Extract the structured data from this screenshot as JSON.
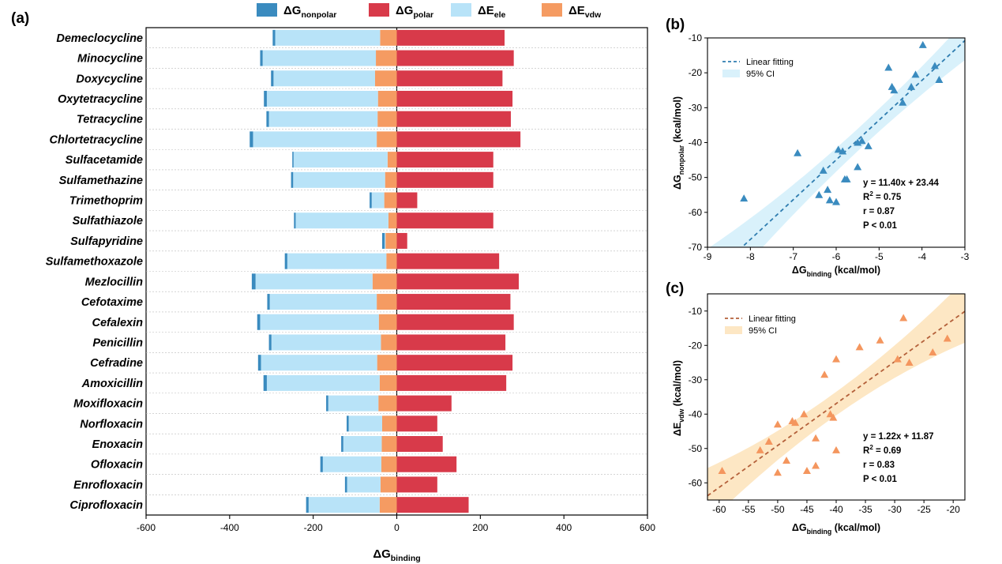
{
  "colors": {
    "nonpolar": "#3a8bbf",
    "polar": "#d83a4a",
    "ele": "#b8e3f8",
    "vdw": "#f59b62",
    "fit_b": "#2f7db0",
    "ci_b": "#d9f1fb",
    "fit_c": "#b4603a",
    "ci_c": "#fde7c4",
    "tri_b": "#3a8bbf",
    "tri_c": "#f4965e"
  },
  "chart_data": [
    {
      "panel": "(a)",
      "type": "bar",
      "orientation": "horizontal",
      "stacked": true,
      "xlabel_main": "ΔG",
      "xlabel_sub": "binding",
      "xlim": [
        -600,
        600
      ],
      "xticks": [
        "-600",
        "-400",
        "-200",
        "0",
        "200",
        "400",
        "600"
      ],
      "legend": [
        {
          "main": "ΔG",
          "sub": "nonpolar",
          "color_key": "nonpolar"
        },
        {
          "main": "ΔG",
          "sub": "polar",
          "color_key": "polar"
        },
        {
          "main": "ΔE",
          "sub": "ele",
          "color_key": "ele"
        },
        {
          "main": "ΔE",
          "sub": "vdw",
          "color_key": "vdw"
        }
      ],
      "categories": [
        "Demeclocycline",
        "Minocycline",
        "Doxycycline",
        "Oxytetracycline",
        "Tetracycline",
        "Chlortetracycline",
        "Sulfacetamide",
        "Sulfamethazine",
        "Trimethoprim",
        "Sulfathiazole",
        "Sulfapyridine",
        "Sulfamethoxazole",
        "Mezlocillin",
        "Cefotaxime",
        "Cefalexin",
        "Penicillin",
        "Cefradine",
        "Amoxicillin",
        "Moxifloxacin",
        "Norfloxacin",
        "Enoxacin",
        "Ofloxacin",
        "Enrofloxacin",
        "Ciprofloxacin"
      ],
      "series": [
        {
          "name_main": "ΔE",
          "name_sub": "vdw",
          "key": "vdw",
          "values": [
            -40,
            -50,
            -52,
            -45,
            -46,
            -48,
            -22,
            -28,
            -30,
            -20,
            -27,
            -25,
            -58,
            -48,
            -43,
            -38,
            -47,
            -41,
            -44,
            -35,
            -36,
            -37,
            -39,
            -41
          ]
        },
        {
          "name_main": "ΔE",
          "name_sub": "ele",
          "key": "ele",
          "values": [
            -251,
            -271,
            -243,
            -266,
            -260,
            -296,
            -225,
            -220,
            -30,
            -222,
            -2,
            -237,
            -280,
            -256,
            -284,
            -262,
            -278,
            -270,
            -120,
            -80,
            -92,
            -140,
            -80,
            -170
          ]
        },
        {
          "name_main": "ΔG",
          "name_sub": "nonpolar",
          "key": "nonpolar",
          "values": [
            -6,
            -6,
            -6,
            -7,
            -6,
            -8,
            -3,
            -5,
            -5,
            -4,
            -6,
            -6,
            -9,
            -6,
            -7,
            -6,
            -7,
            -8,
            -5,
            -5,
            -5,
            -6,
            -5,
            -6
          ]
        },
        {
          "name_main": "ΔG",
          "name_sub": "polar",
          "key": "polar",
          "values": [
            258,
            280,
            253,
            277,
            273,
            296,
            231,
            231,
            49,
            231,
            25,
            245,
            292,
            272,
            280,
            260,
            277,
            262,
            131,
            97,
            110,
            143,
            97,
            172
          ]
        }
      ]
    },
    {
      "panel": "(b)",
      "type": "scatter",
      "xlabel_main": "ΔG",
      "xlabel_sub": "binding",
      "xlabel_unit": "(kcal/mol)",
      "ylabel_main": "ΔG",
      "ylabel_sub": "nonpolar",
      "ylabel_unit": "(kcal/mol)",
      "xlim": [
        -9,
        -3
      ],
      "ylim": [
        -70,
        -10
      ],
      "xticks": [
        -9,
        -8,
        -7,
        -6,
        -5,
        -4,
        -3
      ],
      "yticks": [
        -10,
        -20,
        -30,
        -40,
        -50,
        -60,
        -70
      ],
      "legend": [
        "Linear fitting",
        "95% CI"
      ],
      "equation": "y = 11.40x + 23.44",
      "r2_prefix": "R",
      "r2_sup": "2",
      "r2_value": " = 0.75",
      "r": "r = 0.87",
      "p": "P < 0.01",
      "fit": {
        "slope": 11.4,
        "intercept": 23.44
      },
      "points": [
        {
          "x": -8.15,
          "y": -56
        },
        {
          "x": -6.9,
          "y": -43
        },
        {
          "x": -6.4,
          "y": -55
        },
        {
          "x": -6.3,
          "y": -48
        },
        {
          "x": -6.2,
          "y": -53.5
        },
        {
          "x": -6.15,
          "y": -56.5
        },
        {
          "x": -6.0,
          "y": -57
        },
        {
          "x": -5.95,
          "y": -42
        },
        {
          "x": -5.85,
          "y": -42.5
        },
        {
          "x": -5.8,
          "y": -50.5
        },
        {
          "x": -5.75,
          "y": -50.5
        },
        {
          "x": -5.5,
          "y": -47
        },
        {
          "x": -5.5,
          "y": -40
        },
        {
          "x": -5.4,
          "y": -39.5
        },
        {
          "x": -5.25,
          "y": -41
        },
        {
          "x": -4.78,
          "y": -18.5
        },
        {
          "x": -4.7,
          "y": -24
        },
        {
          "x": -4.65,
          "y": -25
        },
        {
          "x": -4.45,
          "y": -28.5
        },
        {
          "x": -4.25,
          "y": -24
        },
        {
          "x": -4.15,
          "y": -20.5
        },
        {
          "x": -3.98,
          "y": -12
        },
        {
          "x": -3.7,
          "y": -18
        },
        {
          "x": -3.6,
          "y": -22
        }
      ]
    },
    {
      "panel": "(c)",
      "type": "scatter",
      "xlabel_main": "ΔG",
      "xlabel_sub": "binding",
      "xlabel_unit": "(kcal/mol)",
      "ylabel_main": "ΔE",
      "ylabel_sub": "vdw",
      "ylabel_unit": "(kcal/mol)",
      "xlim": [
        -62,
        -18
      ],
      "ylim": [
        -65,
        -5
      ],
      "xticks": [
        -60,
        -55,
        -50,
        -45,
        -40,
        -35,
        -30,
        -25,
        -20
      ],
      "yticks": [
        -10,
        -20,
        -30,
        -40,
        -50,
        -60
      ],
      "legend": [
        "Linear fitting",
        "95% CI"
      ],
      "equation": "y = 1.22x + 11.87",
      "r2_prefix": "R",
      "r2_sup": "2",
      "r2_value": " = 0.69",
      "r": "r = 0.83",
      "p": "P < 0.01",
      "fit": {
        "slope": 1.22,
        "intercept": 11.87
      },
      "points": [
        {
          "x": -59.5,
          "y": -56.5
        },
        {
          "x": -53,
          "y": -50.5
        },
        {
          "x": -51.5,
          "y": -48
        },
        {
          "x": -50,
          "y": -43
        },
        {
          "x": -50,
          "y": -57
        },
        {
          "x": -48.5,
          "y": -53.5
        },
        {
          "x": -47.5,
          "y": -42
        },
        {
          "x": -47,
          "y": -42.5
        },
        {
          "x": -45.5,
          "y": -40
        },
        {
          "x": -45,
          "y": -56.5
        },
        {
          "x": -43.5,
          "y": -55
        },
        {
          "x": -43.5,
          "y": -47
        },
        {
          "x": -42,
          "y": -28.5
        },
        {
          "x": -41,
          "y": -40
        },
        {
          "x": -40.5,
          "y": -41
        },
        {
          "x": -40,
          "y": -50.5
        },
        {
          "x": -40,
          "y": -24
        },
        {
          "x": -36,
          "y": -20.5
        },
        {
          "x": -32.5,
          "y": -18.5
        },
        {
          "x": -29.5,
          "y": -24
        },
        {
          "x": -28.5,
          "y": -12
        },
        {
          "x": -27.5,
          "y": -25
        },
        {
          "x": -23.5,
          "y": -22
        },
        {
          "x": -21,
          "y": -18
        }
      ]
    }
  ]
}
